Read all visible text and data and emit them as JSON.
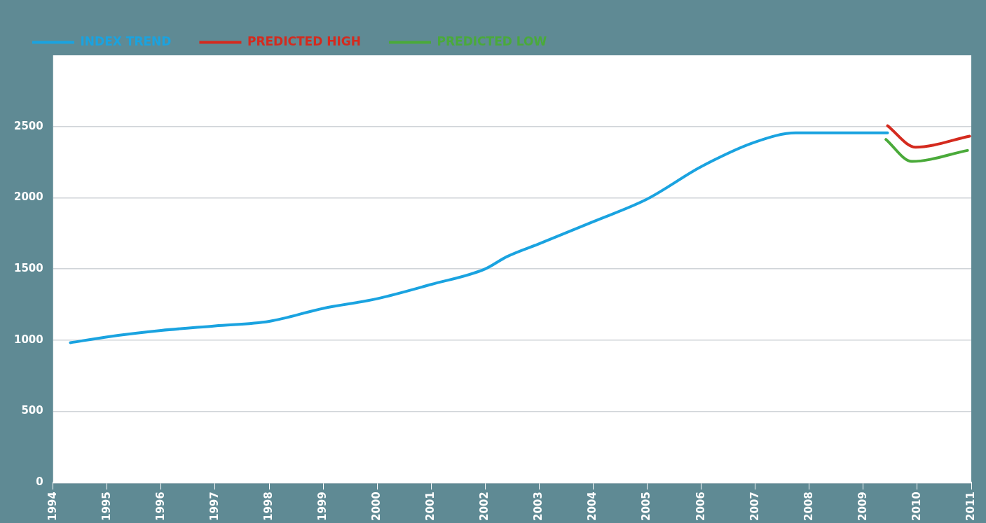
{
  "chart_data": {
    "type": "line",
    "xlim": [
      1994,
      2011
    ],
    "xticks": [
      1994,
      1995,
      1996,
      1997,
      1998,
      1999,
      2000,
      2001,
      2002,
      2003,
      2004,
      2005,
      2006,
      2007,
      2008,
      2009,
      2010,
      2011
    ],
    "ylim": [
      0,
      3000
    ],
    "yticks": [
      0,
      500,
      1000,
      1500,
      2000,
      2500
    ],
    "grid": "y",
    "legend": "top left",
    "marker": "none",
    "line_style": "solid",
    "series": [
      {
        "name": "INDEX TREND",
        "color": "#1aa3e0",
        "x": [
          1994.32,
          1995,
          1996,
          1997,
          1998,
          1999,
          2000,
          2001,
          2002,
          2002.4,
          2003,
          2004,
          2005,
          2006,
          2007,
          2007.75,
          2009.45
        ],
        "values": [
          982,
          1023,
          1068,
          1100,
          1132,
          1223,
          1291,
          1391,
          1500,
          1586,
          1677,
          1832,
          1991,
          2218,
          2391,
          2455,
          2455
        ]
      },
      {
        "name": "PREDICTED HIGH",
        "color": "#d42a1e",
        "x": [
          2009.45,
          2009.97,
          2010.97
        ],
        "values": [
          2505,
          2355,
          2432
        ]
      },
      {
        "name": "PREDICTED LOW",
        "color": "#4aaa3a",
        "x": [
          2009.42,
          2009.9,
          2010.93
        ],
        "values": [
          2409,
          2255,
          2332
        ]
      }
    ]
  }
}
